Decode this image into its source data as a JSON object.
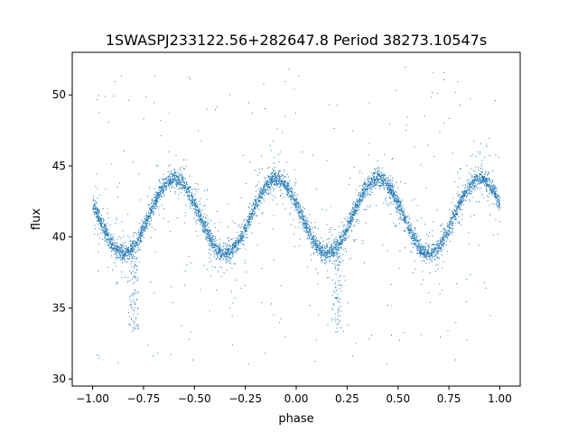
{
  "chart_data": {
    "type": "scatter",
    "title": "1SWASPJ233122.56+282647.8 Period 38273.10547s",
    "xlabel": "phase",
    "ylabel": "flux",
    "xlim": [
      -1.1,
      1.1
    ],
    "ylim": [
      29.5,
      53.0
    ],
    "xticks": [
      -1.0,
      -0.75,
      -0.5,
      -0.25,
      0.0,
      0.25,
      0.5,
      0.75,
      1.0
    ],
    "xtick_labels": [
      "−1.00",
      "−0.75",
      "−0.50",
      "−0.25",
      "0.00",
      "0.25",
      "0.50",
      "0.75",
      "1.00"
    ],
    "yticks": [
      30,
      35,
      40,
      45,
      50
    ],
    "ytick_labels": [
      "30",
      "35",
      "40",
      "45",
      "50"
    ],
    "grid": false,
    "legend": "none",
    "marker_color": "#1f77b4",
    "series": [
      {
        "x_range": [
          -1.0,
          1.0
        ],
        "pattern": "folded light curve, sinusoid with two cycles per unit phase",
        "maxima": [
          {
            "x": -0.6,
            "y": 44.2
          },
          {
            "x": -0.1,
            "y": 44.1
          },
          {
            "x": 0.4,
            "y": 44.2
          },
          {
            "x": 0.9,
            "y": 44.1
          }
        ],
        "minima": [
          {
            "x": -0.85,
            "y": 38.9
          },
          {
            "x": -0.35,
            "y": 38.9
          },
          {
            "x": 0.15,
            "y": 38.8
          },
          {
            "x": 0.65,
            "y": 38.9
          }
        ],
        "scatter_dips": [
          {
            "x": -0.8,
            "y": 33.3
          },
          {
            "x": 0.2,
            "y": 33.3
          }
        ]
      }
    ]
  }
}
